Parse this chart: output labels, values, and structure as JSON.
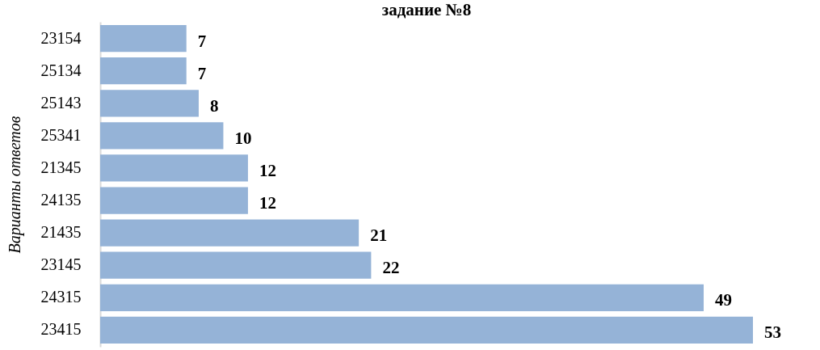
{
  "chart_data": {
    "type": "bar",
    "orientation": "horizontal",
    "title": "задание №8",
    "ylabel": "Варианты ответов",
    "categories": [
      "23154",
      "25134",
      "25143",
      "25341",
      "21345",
      "24135",
      "21435",
      "23145",
      "24315",
      "23415"
    ],
    "values": [
      7,
      7,
      8,
      10,
      12,
      12,
      21,
      22,
      49,
      53
    ],
    "color": "#95b3d7",
    "data_labels": true
  }
}
